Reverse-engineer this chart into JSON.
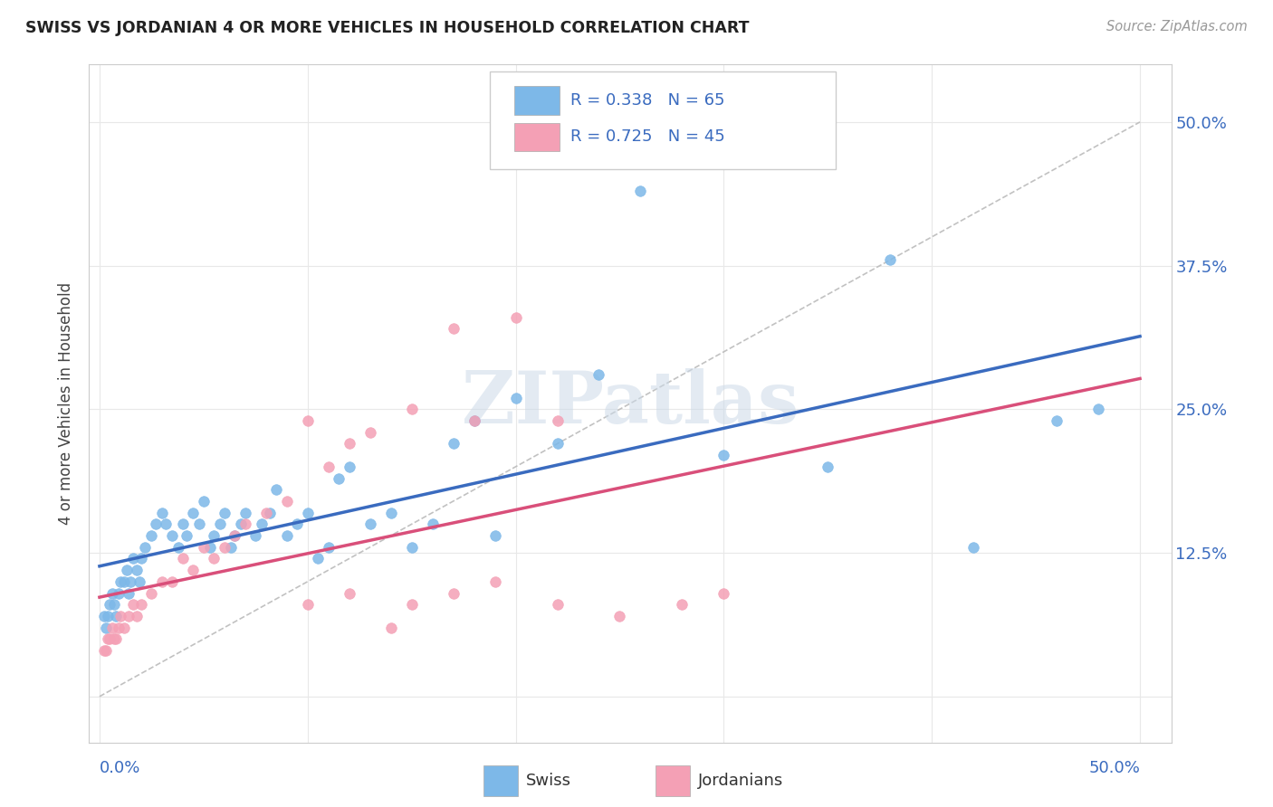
{
  "title": "SWISS VS JORDANIAN 4 OR MORE VEHICLES IN HOUSEHOLD CORRELATION CHART",
  "source": "Source: ZipAtlas.com",
  "ylabel": "4 or more Vehicles in Household",
  "swiss_color": "#7db8e8",
  "jordanian_color": "#f4a0b5",
  "swiss_line_color": "#3a6bbf",
  "jordanian_line_color": "#d94f7a",
  "diagonal_color": "#bbbbbb",
  "swiss_R": 0.338,
  "swiss_N": 65,
  "jordanian_R": 0.725,
  "jordanian_N": 45,
  "swiss_x": [
    0.002,
    0.003,
    0.004,
    0.005,
    0.006,
    0.007,
    0.008,
    0.009,
    0.01,
    0.012,
    0.013,
    0.014,
    0.015,
    0.016,
    0.018,
    0.019,
    0.02,
    0.022,
    0.025,
    0.027,
    0.03,
    0.032,
    0.035,
    0.038,
    0.04,
    0.042,
    0.045,
    0.048,
    0.05,
    0.053,
    0.055,
    0.058,
    0.06,
    0.063,
    0.065,
    0.068,
    0.07,
    0.075,
    0.078,
    0.082,
    0.085,
    0.09,
    0.095,
    0.1,
    0.105,
    0.11,
    0.115,
    0.12,
    0.13,
    0.14,
    0.15,
    0.16,
    0.17,
    0.18,
    0.19,
    0.2,
    0.22,
    0.24,
    0.26,
    0.3,
    0.35,
    0.38,
    0.42,
    0.46,
    0.48
  ],
  "swiss_y": [
    0.07,
    0.06,
    0.07,
    0.08,
    0.09,
    0.08,
    0.07,
    0.09,
    0.1,
    0.1,
    0.11,
    0.09,
    0.1,
    0.12,
    0.11,
    0.1,
    0.12,
    0.13,
    0.14,
    0.15,
    0.16,
    0.15,
    0.14,
    0.13,
    0.15,
    0.14,
    0.16,
    0.15,
    0.17,
    0.13,
    0.14,
    0.15,
    0.16,
    0.13,
    0.14,
    0.15,
    0.16,
    0.14,
    0.15,
    0.16,
    0.18,
    0.14,
    0.15,
    0.16,
    0.12,
    0.13,
    0.19,
    0.2,
    0.15,
    0.16,
    0.13,
    0.15,
    0.22,
    0.24,
    0.14,
    0.26,
    0.22,
    0.28,
    0.44,
    0.21,
    0.2,
    0.38,
    0.13,
    0.24,
    0.25
  ],
  "jordanian_x": [
    0.002,
    0.003,
    0.004,
    0.005,
    0.006,
    0.007,
    0.008,
    0.009,
    0.01,
    0.012,
    0.014,
    0.016,
    0.018,
    0.02,
    0.025,
    0.03,
    0.035,
    0.04,
    0.045,
    0.05,
    0.055,
    0.06,
    0.065,
    0.07,
    0.08,
    0.09,
    0.1,
    0.11,
    0.12,
    0.13,
    0.15,
    0.17,
    0.2,
    0.22,
    0.15,
    0.17,
    0.19,
    0.22,
    0.18,
    0.25,
    0.28,
    0.3,
    0.1,
    0.12,
    0.14
  ],
  "jordanian_y": [
    0.04,
    0.04,
    0.05,
    0.05,
    0.06,
    0.05,
    0.05,
    0.06,
    0.07,
    0.06,
    0.07,
    0.08,
    0.07,
    0.08,
    0.09,
    0.1,
    0.1,
    0.12,
    0.11,
    0.13,
    0.12,
    0.13,
    0.14,
    0.15,
    0.16,
    0.17,
    0.24,
    0.2,
    0.22,
    0.23,
    0.25,
    0.32,
    0.33,
    0.24,
    0.08,
    0.09,
    0.1,
    0.08,
    0.24,
    0.07,
    0.08,
    0.09,
    0.08,
    0.09,
    0.06
  ],
  "watermark": "ZIPatlas",
  "background_color": "#ffffff",
  "grid_color": "#e8e8e8",
  "yticks": [
    0.0,
    0.125,
    0.25,
    0.375,
    0.5
  ],
  "ytick_labels": [
    "",
    "12.5%",
    "25.0%",
    "37.5%",
    "50.0%"
  ],
  "xlim": [
    -0.005,
    0.515
  ],
  "ylim": [
    -0.04,
    0.55
  ]
}
